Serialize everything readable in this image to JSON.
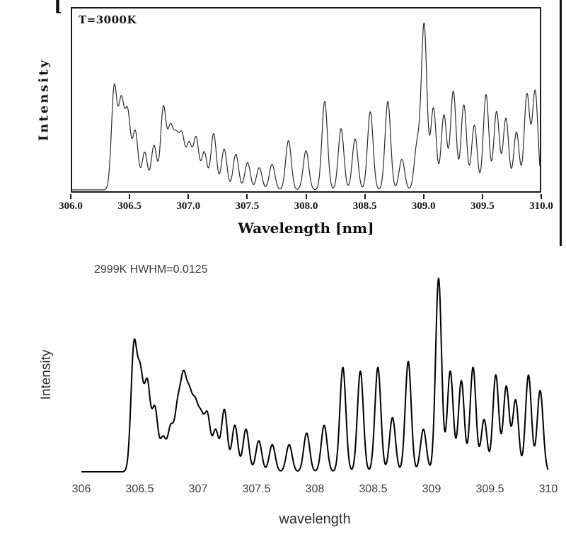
{
  "chart_data": [
    {
      "type": "line",
      "name": "scanned-reference-spectrum",
      "annotation": "T=3000K",
      "ylabel": "Intensity",
      "y_unit_fragment": "[",
      "xlabel": "Wavelength [nm]",
      "xlim": [
        306.0,
        310.0
      ],
      "ylim": [
        0,
        1
      ],
      "grid": false,
      "legend_position": "none",
      "x_ticks": [
        "306.0",
        "306.5",
        "307.0",
        "307.5",
        "308.0",
        "308.5",
        "309.0",
        "309.5",
        "310.0"
      ],
      "line_color": "#2b2b2b",
      "line_width": 1.2,
      "render_hwhm": 0.028,
      "peaks": [
        [
          306.36,
          0.6
        ],
        [
          306.42,
          0.5
        ],
        [
          306.475,
          0.44
        ],
        [
          306.54,
          0.34
        ],
        [
          306.62,
          0.22
        ],
        [
          306.7,
          0.26
        ],
        [
          306.78,
          0.48
        ],
        [
          306.84,
          0.34
        ],
        [
          306.89,
          0.28
        ],
        [
          306.94,
          0.3
        ],
        [
          307.0,
          0.26
        ],
        [
          307.06,
          0.3
        ],
        [
          307.13,
          0.22
        ],
        [
          307.21,
          0.33
        ],
        [
          307.3,
          0.24
        ],
        [
          307.4,
          0.21
        ],
        [
          307.5,
          0.16
        ],
        [
          307.6,
          0.13
        ],
        [
          307.71,
          0.15
        ],
        [
          307.85,
          0.29
        ],
        [
          308.0,
          0.23
        ],
        [
          308.16,
          0.52
        ],
        [
          308.3,
          0.36
        ],
        [
          308.42,
          0.3
        ],
        [
          308.55,
          0.46
        ],
        [
          308.7,
          0.52
        ],
        [
          308.82,
          0.18
        ],
        [
          308.95,
          0.26
        ],
        [
          309.01,
          0.97
        ],
        [
          309.09,
          0.48
        ],
        [
          309.18,
          0.44
        ],
        [
          309.26,
          0.58
        ],
        [
          309.35,
          0.5
        ],
        [
          309.44,
          0.38
        ],
        [
          309.54,
          0.56
        ],
        [
          309.63,
          0.46
        ],
        [
          309.71,
          0.42
        ],
        [
          309.8,
          0.34
        ],
        [
          309.89,
          0.56
        ],
        [
          309.96,
          0.58
        ]
      ]
    },
    {
      "type": "line",
      "name": "simulated-spectrum",
      "annotation": "2999K HWHM=0.0125",
      "ylabel": "Intensity",
      "xlabel": "wavelength",
      "xlim": [
        306,
        310
      ],
      "ylim": [
        0,
        1
      ],
      "grid": false,
      "legend_position": "none",
      "x_ticks": [
        "306",
        "306.5",
        "307",
        "307.5",
        "308",
        "308.5",
        "309",
        "309.5",
        "310"
      ],
      "line_color": "#000000",
      "line_width": 2,
      "render_hwhm": 0.03,
      "peaks": [
        [
          306.45,
          0.63
        ],
        [
          306.505,
          0.47
        ],
        [
          306.565,
          0.44
        ],
        [
          306.63,
          0.32
        ],
        [
          306.7,
          0.17
        ],
        [
          306.765,
          0.22
        ],
        [
          306.825,
          0.31
        ],
        [
          306.875,
          0.43
        ],
        [
          306.925,
          0.34
        ],
        [
          306.975,
          0.3
        ],
        [
          307.025,
          0.25
        ],
        [
          307.08,
          0.28
        ],
        [
          307.15,
          0.21
        ],
        [
          307.225,
          0.32
        ],
        [
          307.315,
          0.24
        ],
        [
          307.41,
          0.22
        ],
        [
          307.52,
          0.16
        ],
        [
          307.635,
          0.14
        ],
        [
          307.78,
          0.14
        ],
        [
          307.93,
          0.2
        ],
        [
          308.08,
          0.24
        ],
        [
          308.24,
          0.54
        ],
        [
          308.39,
          0.52
        ],
        [
          308.54,
          0.54
        ],
        [
          308.665,
          0.28
        ],
        [
          308.8,
          0.57
        ],
        [
          308.93,
          0.22
        ],
        [
          309.06,
          1.0
        ],
        [
          309.16,
          0.52
        ],
        [
          309.255,
          0.47
        ],
        [
          309.355,
          0.54
        ],
        [
          309.45,
          0.27
        ],
        [
          309.55,
          0.5
        ],
        [
          309.64,
          0.44
        ],
        [
          309.72,
          0.37
        ],
        [
          309.83,
          0.5
        ],
        [
          309.93,
          0.42
        ]
      ]
    }
  ]
}
